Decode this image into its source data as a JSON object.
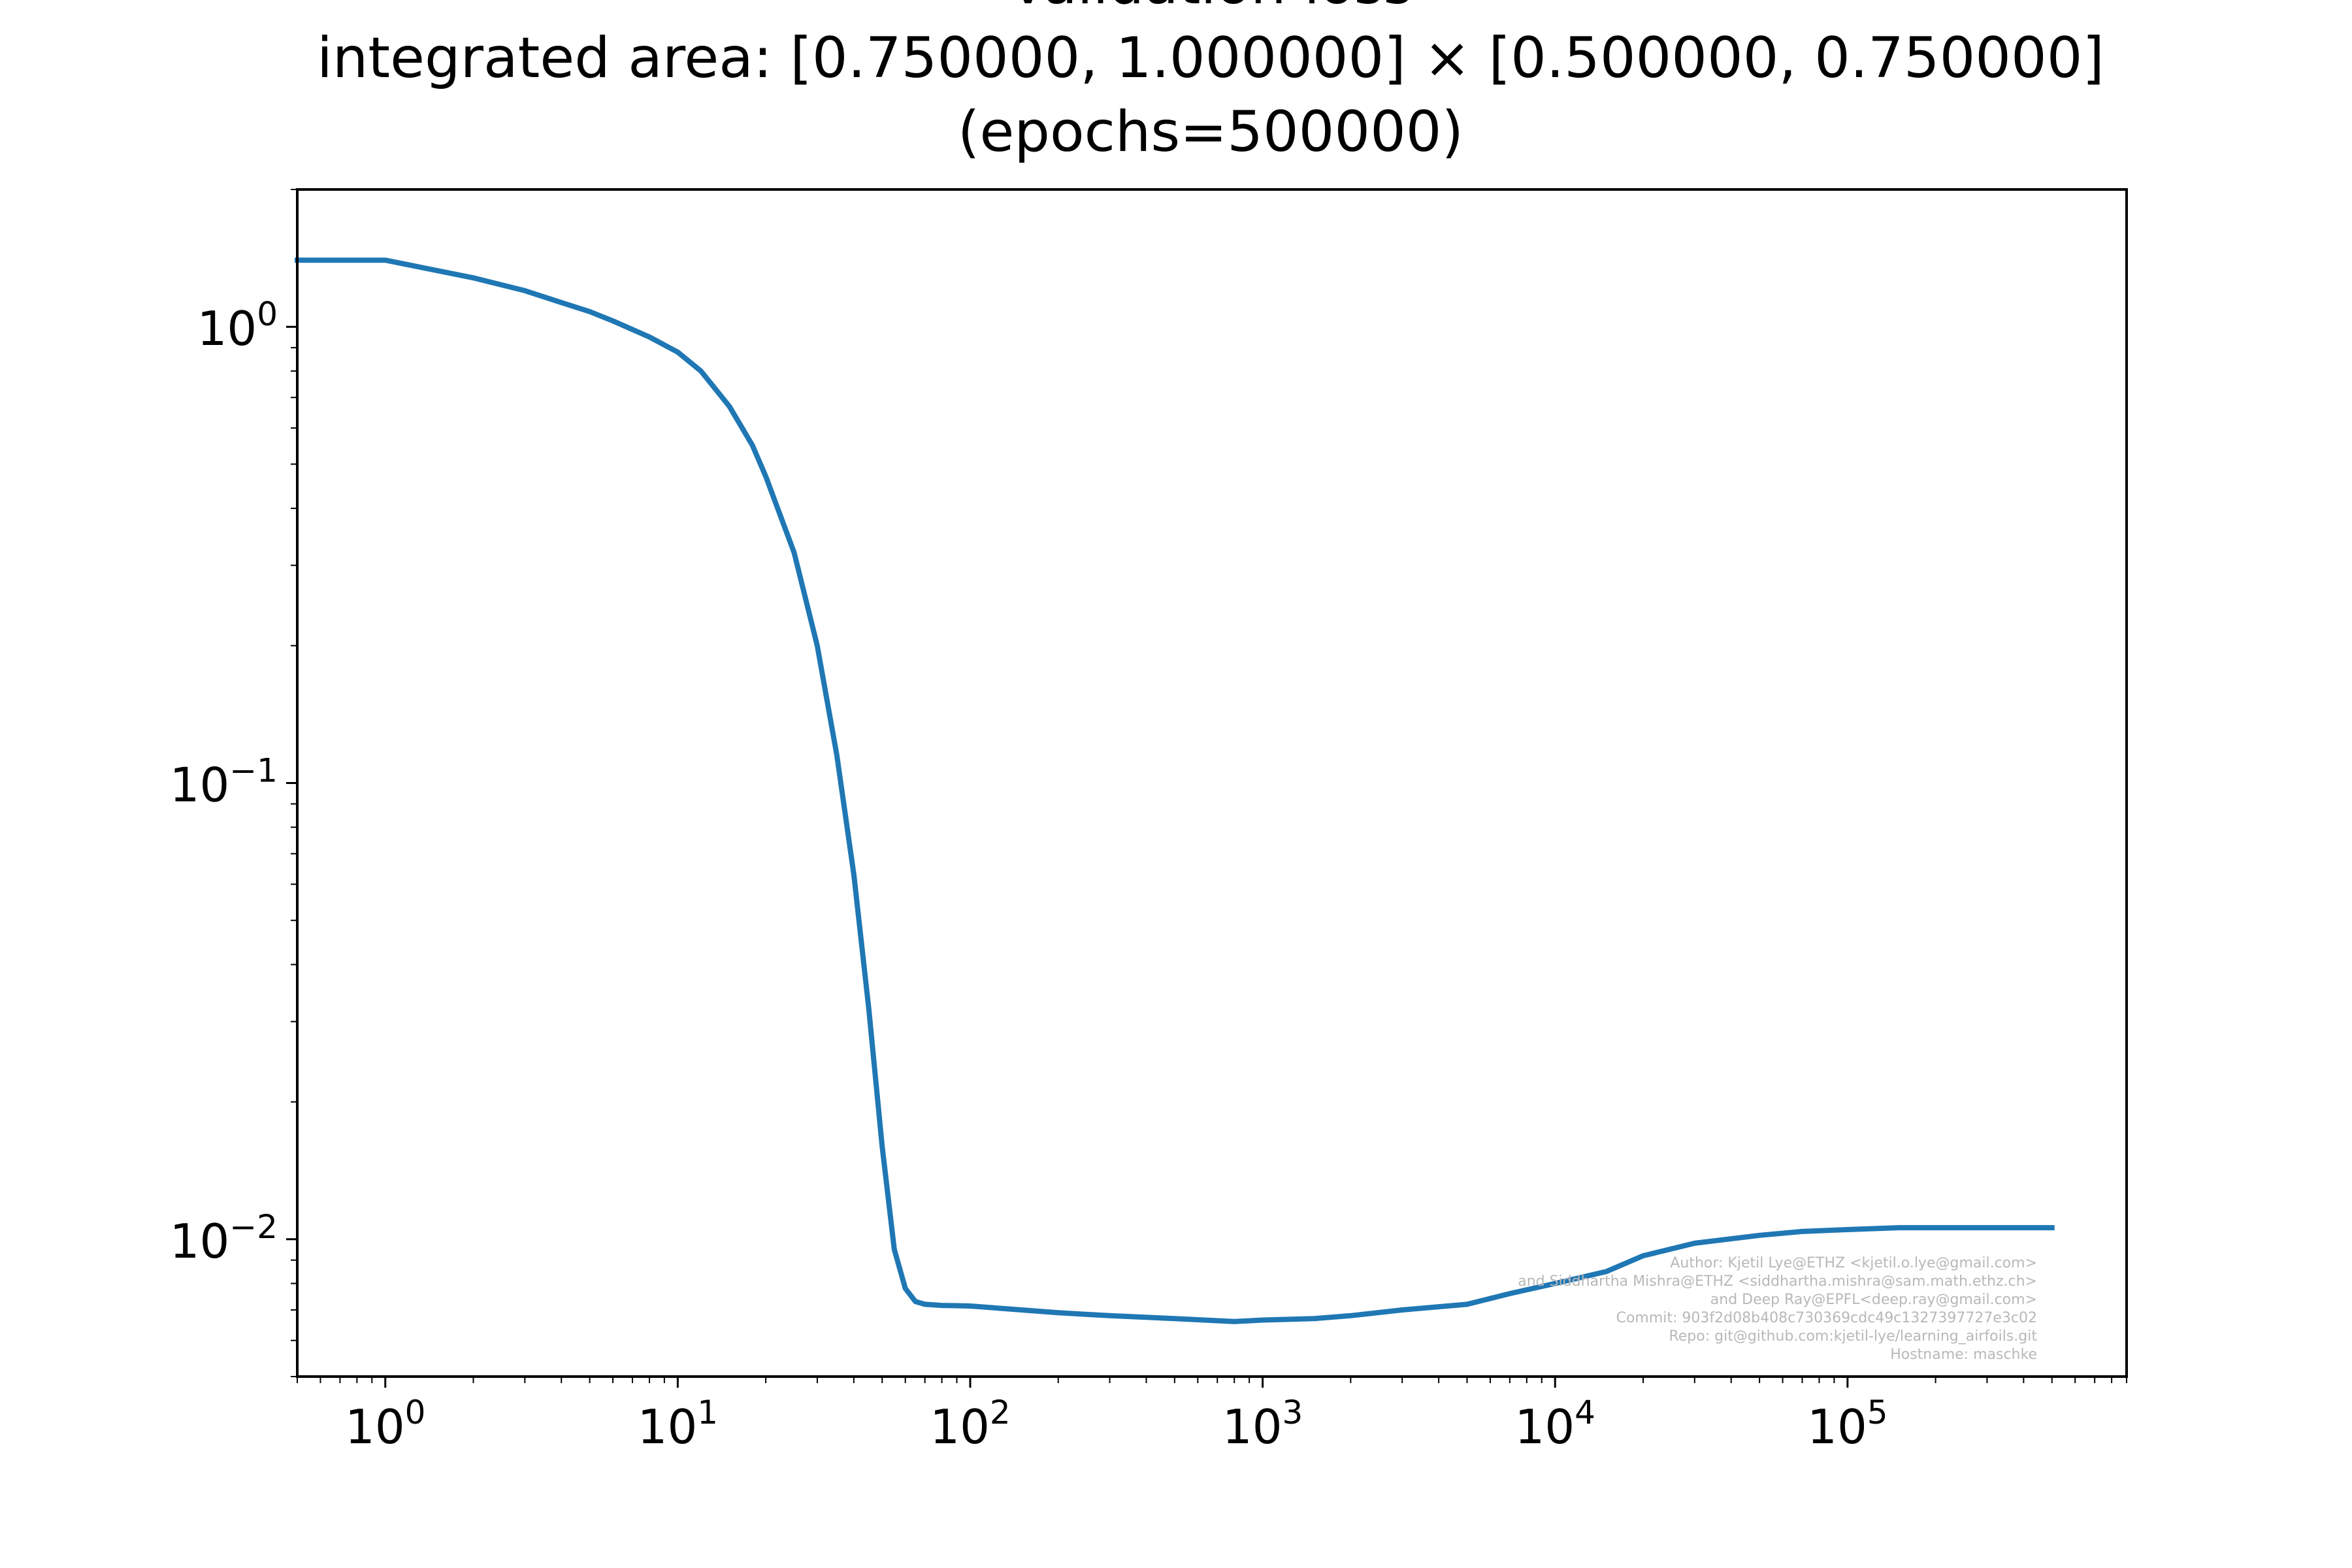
{
  "chart_data": {
    "type": "line",
    "title_lines": [
      "Validation loss",
      "integrated area: [0.750000, 1.000000] × [0.500000, 0.750000]",
      "(epochs=500000)"
    ],
    "xlabel": "",
    "ylabel": "",
    "xscale": "log",
    "yscale": "log",
    "xlim": [
      0.5,
      900000
    ],
    "ylim": [
      0.005,
      2.0
    ],
    "grid": false,
    "line_color": "#1f77b4",
    "x_ticks": [
      {
        "base": "10",
        "exp": "0",
        "value": 1
      },
      {
        "base": "10",
        "exp": "1",
        "value": 10
      },
      {
        "base": "10",
        "exp": "2",
        "value": 100
      },
      {
        "base": "10",
        "exp": "3",
        "value": 1000
      },
      {
        "base": "10",
        "exp": "4",
        "value": 10000
      },
      {
        "base": "10",
        "exp": "5",
        "value": 100000
      }
    ],
    "y_ticks": [
      {
        "base": "10",
        "exp": "0",
        "value": 1
      },
      {
        "base": "10",
        "exp": "−1",
        "value": 0.1
      },
      {
        "base": "10",
        "exp": "−2",
        "value": 0.01
      }
    ],
    "series": [
      {
        "x": [
          0.5,
          1,
          2,
          3,
          4,
          5,
          6,
          8,
          10,
          12,
          15,
          18,
          20,
          25,
          30,
          35,
          40,
          45,
          50,
          55,
          60,
          65,
          70,
          75,
          80,
          90,
          100,
          150,
          200,
          300,
          500,
          800,
          1000,
          1500,
          2000,
          3000,
          5000,
          7000,
          10000,
          15000,
          20000,
          30000,
          50000,
          70000,
          100000,
          150000,
          200000,
          300000,
          500000
        ],
        "y": [
          1.4,
          1.4,
          1.28,
          1.2,
          1.13,
          1.08,
          1.03,
          0.95,
          0.88,
          0.8,
          0.67,
          0.55,
          0.47,
          0.32,
          0.2,
          0.115,
          0.063,
          0.032,
          0.016,
          0.0095,
          0.0078,
          0.0073,
          0.0072,
          0.00718,
          0.00716,
          0.00715,
          0.00714,
          0.007,
          0.0069,
          0.0068,
          0.0067,
          0.0066,
          0.00665,
          0.0067,
          0.0068,
          0.007,
          0.0072,
          0.0076,
          0.008,
          0.0085,
          0.0092,
          0.0098,
          0.0102,
          0.0104,
          0.0105,
          0.0106,
          0.0106,
          0.0106,
          0.0106
        ]
      }
    ]
  },
  "watermark": [
    "Author: Kjetil Lye@ETHZ <kjetil.o.lye@gmail.com>",
    "and Siddhartha Mishra@ETHZ <siddhartha.mishra@sam.math.ethz.ch>",
    "and Deep Ray@EPFL<deep.ray@gmail.com>",
    "Commit: 903f2d08b408c730369cdc49c1327397727e3c02",
    "Repo: git@github.com:kjetil-lye/learning_airfoils.git",
    "Hostname: maschke"
  ]
}
